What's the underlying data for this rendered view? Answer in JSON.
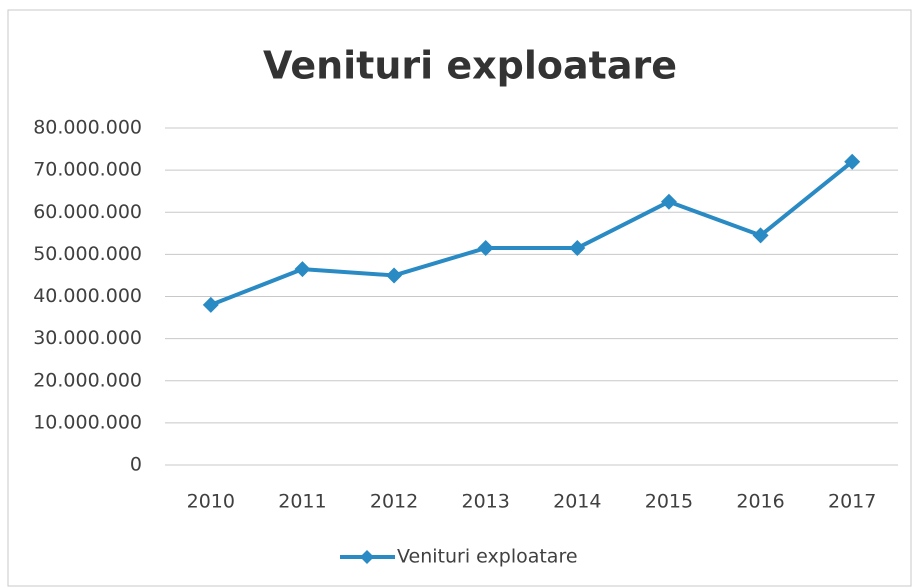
{
  "chart_data": {
    "type": "line",
    "title": "Venituri exploatare",
    "categories": [
      "2010",
      "2011",
      "2012",
      "2013",
      "2014",
      "2015",
      "2016",
      "2017"
    ],
    "series": [
      {
        "name": "Venituri exploatare",
        "color": "#2a8ac4",
        "values": [
          38000000,
          46500000,
          45000000,
          51500000,
          51500000,
          62500000,
          54500000,
          72000000
        ]
      }
    ],
    "ylim": [
      0,
      80000000
    ],
    "yticks": [
      0,
      {
        "value": 10000000,
        "label": "10.000.000"
      },
      {
        "value": 20000000,
        "label": "20.000.000"
      },
      {
        "value": 30000000,
        "label": "30.000.000"
      },
      {
        "value": 40000000,
        "label": "40.000.000"
      },
      {
        "value": 50000000,
        "label": "50.000.000"
      },
      {
        "value": 60000000,
        "label": "60.000.000"
      },
      {
        "value": 70000000,
        "label": "70.000.000"
      },
      {
        "value": 80000000,
        "label": "80.000.000"
      }
    ],
    "grid": true,
    "legend": "bottom"
  }
}
